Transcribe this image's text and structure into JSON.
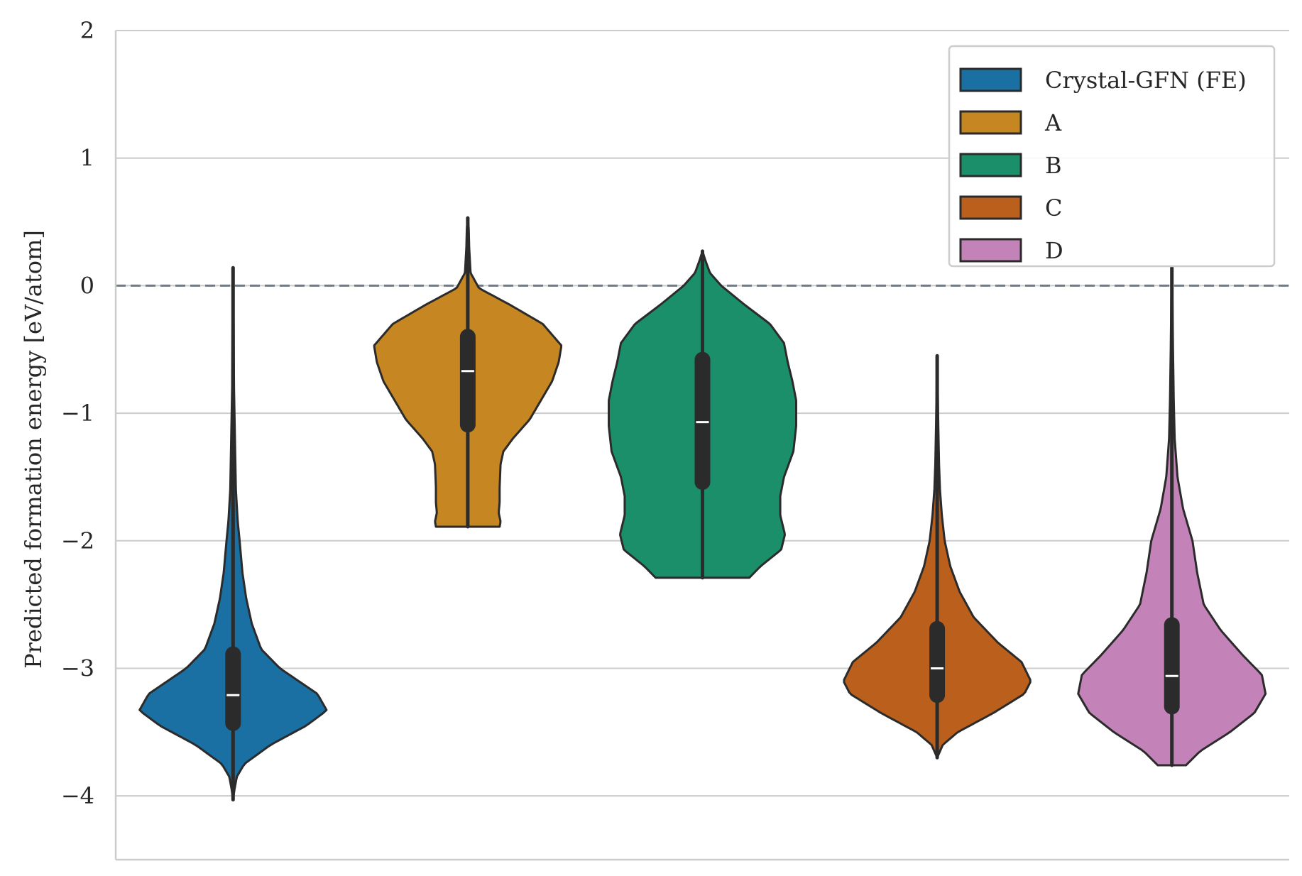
{
  "chart_data": {
    "type": "violin",
    "ylabel": "Predicted formation energy [eV/atom]",
    "xlabel": "",
    "ylim": [
      -4.5,
      2
    ],
    "yticks": [
      -4,
      -3,
      -2,
      -1,
      0,
      1,
      2
    ],
    "ytick_labels": [
      "−4",
      "−3",
      "−2",
      "−1",
      "0",
      "1",
      "2"
    ],
    "grid": "horizontal",
    "reference_line": {
      "y": 0,
      "style": "dashed",
      "color": "#6e7b8b"
    },
    "legend": {
      "placement": "top-right",
      "entries": [
        "Crystal-GFN (FE)",
        "A",
        "B",
        "C",
        "D"
      ]
    },
    "series": [
      {
        "name": "Crystal-GFN (FE)",
        "color": "#1a6fa3",
        "min": -4.03,
        "max": 0.14,
        "q1": -3.43,
        "median": -3.21,
        "q3": -2.89,
        "whisker_low": -4.03,
        "whisker_high": -2.14,
        "density": [
          [
            -4.03,
            0.0
          ],
          [
            -3.95,
            0.015
          ],
          [
            -3.85,
            0.04
          ],
          [
            -3.75,
            0.12
          ],
          [
            -3.6,
            0.4
          ],
          [
            -3.45,
            0.78
          ],
          [
            -3.33,
            1.0
          ],
          [
            -3.2,
            0.9
          ],
          [
            -3.0,
            0.5
          ],
          [
            -2.85,
            0.3
          ],
          [
            -2.65,
            0.2
          ],
          [
            -2.45,
            0.14
          ],
          [
            -2.25,
            0.1
          ],
          [
            -2.0,
            0.07
          ],
          [
            -1.85,
            0.05
          ],
          [
            -1.6,
            0.03
          ],
          [
            -1.2,
            0.02
          ],
          [
            -0.8,
            0.01
          ],
          [
            -0.3,
            0.006
          ],
          [
            0.14,
            0.0
          ]
        ]
      },
      {
        "name": "A",
        "color": "#c68621",
        "min": -1.89,
        "max": 0.53,
        "q1": -1.09,
        "median": -0.67,
        "q3": -0.4,
        "whisker_low": -1.89,
        "whisker_high": 0.53,
        "density": [
          [
            -1.89,
            0.34
          ],
          [
            -1.85,
            0.35
          ],
          [
            -1.78,
            0.33
          ],
          [
            -1.7,
            0.34
          ],
          [
            -1.58,
            0.34
          ],
          [
            -1.4,
            0.35
          ],
          [
            -1.3,
            0.38
          ],
          [
            -1.2,
            0.48
          ],
          [
            -1.05,
            0.66
          ],
          [
            -0.9,
            0.78
          ],
          [
            -0.75,
            0.9
          ],
          [
            -0.6,
            0.97
          ],
          [
            -0.47,
            1.0
          ],
          [
            -0.3,
            0.8
          ],
          [
            -0.15,
            0.45
          ],
          [
            -0.02,
            0.12
          ],
          [
            0.1,
            0.03
          ],
          [
            0.3,
            0.015
          ],
          [
            0.45,
            0.01
          ],
          [
            0.53,
            0.0
          ]
        ]
      },
      {
        "name": "B",
        "color": "#1b8e6a",
        "min": -2.29,
        "max": 0.27,
        "q1": -1.54,
        "median": -1.07,
        "q3": -0.58,
        "whisker_low": -2.29,
        "whisker_high": 0.27,
        "density": [
          [
            -2.29,
            0.5
          ],
          [
            -2.2,
            0.62
          ],
          [
            -2.07,
            0.84
          ],
          [
            -1.95,
            0.88
          ],
          [
            -1.8,
            0.83
          ],
          [
            -1.65,
            0.83
          ],
          [
            -1.5,
            0.87
          ],
          [
            -1.3,
            0.97
          ],
          [
            -1.1,
            1.0
          ],
          [
            -0.9,
            1.0
          ],
          [
            -0.75,
            0.96
          ],
          [
            -0.6,
            0.91
          ],
          [
            -0.45,
            0.87
          ],
          [
            -0.3,
            0.72
          ],
          [
            -0.15,
            0.45
          ],
          [
            0.0,
            0.2
          ],
          [
            0.1,
            0.08
          ],
          [
            0.2,
            0.03
          ],
          [
            0.27,
            0.0
          ]
        ]
      },
      {
        "name": "C",
        "color": "#bb5f1c",
        "min": -3.7,
        "max": -0.55,
        "q1": -3.21,
        "median": -3.0,
        "q3": -2.69,
        "whisker_low": -3.7,
        "whisker_high": -2.04,
        "density": [
          [
            -3.7,
            0.0
          ],
          [
            -3.6,
            0.06
          ],
          [
            -3.5,
            0.22
          ],
          [
            -3.35,
            0.6
          ],
          [
            -3.2,
            0.93
          ],
          [
            -3.1,
            1.0
          ],
          [
            -2.95,
            0.9
          ],
          [
            -2.8,
            0.65
          ],
          [
            -2.6,
            0.39
          ],
          [
            -2.4,
            0.24
          ],
          [
            -2.2,
            0.14
          ],
          [
            -2.0,
            0.08
          ],
          [
            -1.8,
            0.05
          ],
          [
            -1.6,
            0.03
          ],
          [
            -1.4,
            0.02
          ],
          [
            -1.1,
            0.012
          ],
          [
            -0.8,
            0.006
          ],
          [
            -0.55,
            0.0
          ]
        ]
      },
      {
        "name": "D",
        "color": "#c383b9",
        "min": -3.76,
        "max": 0.14,
        "q1": -3.3,
        "median": -3.06,
        "q3": -2.66,
        "whisker_low": -3.76,
        "whisker_high": -1.88,
        "density": [
          [
            -3.76,
            0.15
          ],
          [
            -3.65,
            0.3
          ],
          [
            -3.5,
            0.62
          ],
          [
            -3.35,
            0.88
          ],
          [
            -3.2,
            1.0
          ],
          [
            -3.05,
            0.96
          ],
          [
            -2.9,
            0.76
          ],
          [
            -2.7,
            0.52
          ],
          [
            -2.5,
            0.34
          ],
          [
            -2.25,
            0.27
          ],
          [
            -2.0,
            0.22
          ],
          [
            -1.75,
            0.12
          ],
          [
            -1.5,
            0.06
          ],
          [
            -1.2,
            0.03
          ],
          [
            -0.9,
            0.02
          ],
          [
            -0.5,
            0.012
          ],
          [
            -0.1,
            0.006
          ],
          [
            0.14,
            0.0
          ]
        ]
      }
    ]
  }
}
